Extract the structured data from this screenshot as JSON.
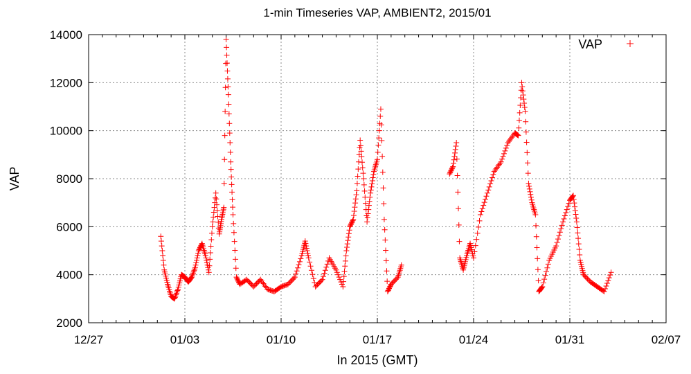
{
  "chart_data": {
    "type": "scatter",
    "title": "1-min Timeseries VAP, AMBIENT2, 2015/01",
    "xlabel": "In 2015 (GMT)",
    "ylabel": "VAP",
    "xlim": [
      "2014-12-27",
      "2015-02-07"
    ],
    "ylim": [
      2000,
      14000
    ],
    "x_ticks": [
      "12/27",
      "01/03",
      "01/10",
      "01/17",
      "01/24",
      "01/31",
      "02/07"
    ],
    "y_ticks": [
      2000,
      4000,
      6000,
      8000,
      10000,
      12000,
      14000
    ],
    "grid": true,
    "legend": {
      "position": "top-right",
      "entries": [
        "VAP"
      ]
    },
    "marker": "+",
    "color": "#ff0000",
    "series": [
      {
        "name": "VAP",
        "x": [
          "2015-01-01T06:00",
          "2015-01-01T12:00",
          "2015-01-01T18:00",
          "2015-01-02T00:00",
          "2015-01-02T06:00",
          "2015-01-02T12:00",
          "2015-01-02T18:00",
          "2015-01-03T00:00",
          "2015-01-03T06:00",
          "2015-01-03T12:00",
          "2015-01-03T18:00",
          "2015-01-04T00:00",
          "2015-01-04T06:00",
          "2015-01-04T12:00",
          "2015-01-04T18:00",
          "2015-01-05T00:00",
          "2015-01-05T06:00",
          "2015-01-05T12:00",
          "2015-01-05T16:00",
          "2015-01-05T20:00",
          "2015-01-06T00:00",
          "2015-01-06T04:00",
          "2015-01-06T08:00",
          "2015-01-06T12:00",
          "2015-01-06T18:00",
          "2015-01-07T00:00",
          "2015-01-07T12:00",
          "2015-01-08T00:00",
          "2015-01-08T12:00",
          "2015-01-09T00:00",
          "2015-01-09T12:00",
          "2015-01-10T00:00",
          "2015-01-10T12:00",
          "2015-01-11T00:00",
          "2015-01-11T12:00",
          "2015-01-11T18:00",
          "2015-01-12T00:00",
          "2015-01-12T12:00",
          "2015-01-13T00:00",
          "2015-01-13T12:00",
          "2015-01-14T00:00",
          "2015-01-14T12:00",
          "2015-01-14T18:00",
          "2015-01-15T00:00",
          "2015-01-15T06:00",
          "2015-01-15T12:00",
          "2015-01-15T18:00",
          "2015-01-16T00:00",
          "2015-01-16T06:00",
          "2015-01-16T12:00",
          "2015-01-16T18:00",
          "2015-01-17T00:00",
          "2015-01-17T06:00",
          "2015-01-17T12:00",
          "2015-01-17T18:00",
          "2015-01-18T00:00",
          "2015-01-18T12:00",
          "2015-01-18T18:00",
          "2015-01-22T06:00",
          "2015-01-22T12:00",
          "2015-01-22T18:00",
          "2015-01-23T00:00",
          "2015-01-23T06:00",
          "2015-01-23T12:00",
          "2015-01-23T18:00",
          "2015-01-24T00:00",
          "2015-01-24T12:00",
          "2015-01-25T00:00",
          "2015-01-25T12:00",
          "2015-01-26T00:00",
          "2015-01-26T12:00",
          "2015-01-27T00:00",
          "2015-01-27T06:00",
          "2015-01-27T12:00",
          "2015-01-27T18:00",
          "2015-01-28T00:00",
          "2015-01-28T06:00",
          "2015-01-28T12:00",
          "2015-01-28T18:00",
          "2015-01-29T00:00",
          "2015-01-29T12:00",
          "2015-01-30T00:00",
          "2015-01-30T12:00",
          "2015-01-31T00:00",
          "2015-01-31T06:00",
          "2015-01-31T12:00",
          "2015-01-31T18:00",
          "2015-02-01T00:00",
          "2015-02-01T12:00",
          "2015-02-02T00:00",
          "2015-02-02T12:00",
          "2015-02-03T00:00"
        ],
        "y": [
          5600,
          4200,
          3600,
          3100,
          3000,
          3400,
          4000,
          3900,
          3700,
          3900,
          4300,
          5000,
          5300,
          4800,
          4100,
          6000,
          7400,
          5700,
          6300,
          6800,
          13800,
          11500,
          8700,
          6500,
          3900,
          3600,
          3800,
          3500,
          3800,
          3400,
          3300,
          3500,
          3600,
          3900,
          4800,
          5400,
          4700,
          3500,
          3800,
          4700,
          4200,
          3500,
          5000,
          6000,
          6300,
          7500,
          9600,
          8000,
          6200,
          7400,
          8300,
          8800,
          10900,
          6300,
          3300,
          3600,
          3900,
          4400,
          8200,
          8500,
          9500,
          4700,
          4200,
          4800,
          5300,
          4700,
          6500,
          7400,
          8300,
          8700,
          9500,
          9900,
          9800,
          12000,
          10800,
          7800,
          7000,
          6500,
          3300,
          3500,
          4600,
          5200,
          6200,
          7100,
          7300,
          6200,
          4600,
          4000,
          3700,
          3500,
          3300,
          4100
        ]
      }
    ]
  }
}
